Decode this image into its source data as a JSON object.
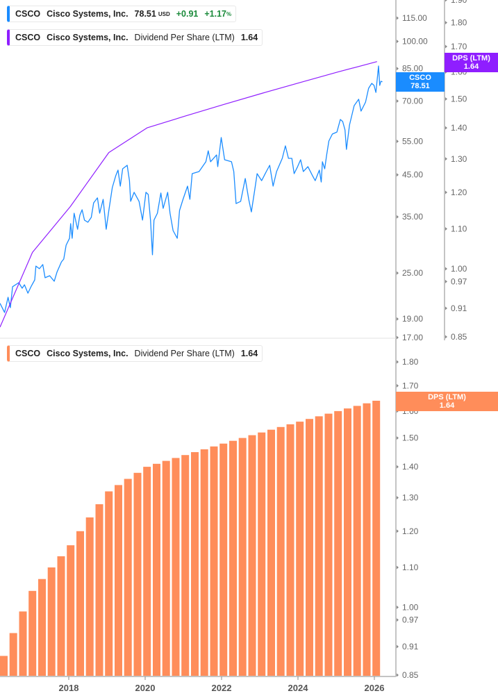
{
  "colors": {
    "price": "#1a8cff",
    "dps_line": "#8f1eff",
    "dps_bar": "#ff8d5a",
    "axis": "#b0b0b0",
    "gain": "#1a8a3a"
  },
  "legends": [
    {
      "ticker": "CSCO",
      "name": "Cisco Systems, Inc.",
      "price": "78.51",
      "currency": "USD",
      "change": "+0.91",
      "change_pct": "+1.17",
      "pct_sign": "%"
    },
    {
      "ticker": "CSCO",
      "name": "Cisco Systems, Inc.",
      "metric": "Dividend Per Share (LTM)",
      "value": "1.64"
    },
    {
      "ticker": "CSCO",
      "name": "Cisco Systems, Inc.",
      "metric": "Dividend Per Share (LTM)",
      "value": "1.64"
    }
  ],
  "tags": {
    "price": {
      "label": "CSCO",
      "value": "78.51"
    },
    "dps_top": {
      "label": "DPS (LTM)",
      "value": "1.64"
    },
    "dps_bottom": {
      "label": "DPS (LTM)",
      "value": "1.64"
    }
  },
  "chart_data": [
    {
      "type": "line",
      "scale": "log",
      "x_axis": {
        "type": "date",
        "range": [
          2016.2,
          2026.5
        ]
      },
      "price_axis": {
        "ticks": [
          "115.00",
          "100.00",
          "85.00",
          "70.00",
          "55.00",
          "45.00",
          "35.00",
          "25.00",
          "19.00",
          "17.00"
        ],
        "range": [
          17,
          115
        ]
      },
      "dps_axis": {
        "ticks": [
          "1.90",
          "1.80",
          "1.70",
          "1.60",
          "1.50",
          "1.40",
          "1.30",
          "1.20",
          "1.10",
          "1.00",
          "0.97",
          "0.91",
          "0.85"
        ],
        "range": [
          0.85,
          1.9
        ]
      },
      "series": [
        {
          "name": "CSCO",
          "axis": "price",
          "points": [
            [
              2016.2,
              20.86
            ],
            [
              2016.32,
              19.75
            ],
            [
              2016.41,
              21.63
            ],
            [
              2016.47,
              20.32
            ],
            [
              2016.53,
              23.04
            ],
            [
              2016.69,
              23.6
            ],
            [
              2016.78,
              22.83
            ],
            [
              2016.84,
              23.31
            ],
            [
              2016.93,
              22.17
            ],
            [
              2017.02,
              23.13
            ],
            [
              2017.11,
              24.0
            ],
            [
              2017.14,
              26.07
            ],
            [
              2017.23,
              25.66
            ],
            [
              2017.32,
              26.31
            ],
            [
              2017.38,
              24.31
            ],
            [
              2017.5,
              24.6
            ],
            [
              2017.62,
              23.81
            ],
            [
              2017.69,
              25.13
            ],
            [
              2017.81,
              26.74
            ],
            [
              2017.87,
              27.19
            ],
            [
              2017.93,
              29.54
            ],
            [
              2018.02,
              30.78
            ],
            [
              2018.05,
              33.61
            ],
            [
              2018.09,
              30.78
            ],
            [
              2018.14,
              35.77
            ],
            [
              2018.23,
              32.49
            ],
            [
              2018.29,
              35.33
            ],
            [
              2018.35,
              36.52
            ],
            [
              2018.41,
              34.33
            ],
            [
              2018.5,
              33.89
            ],
            [
              2018.59,
              34.88
            ],
            [
              2018.65,
              38.05
            ],
            [
              2018.75,
              39.2
            ],
            [
              2018.81,
              35.77
            ],
            [
              2018.9,
              38.86
            ],
            [
              2018.98,
              32.49
            ],
            [
              2019.05,
              36.37
            ],
            [
              2019.14,
              41.72
            ],
            [
              2019.23,
              44.78
            ],
            [
              2019.29,
              46.29
            ],
            [
              2019.35,
              42.06
            ],
            [
              2019.41,
              46.67
            ],
            [
              2019.53,
              47.64
            ],
            [
              2019.59,
              43.47
            ],
            [
              2019.62,
              38.4
            ],
            [
              2019.71,
              40.53
            ],
            [
              2019.84,
              38.4
            ],
            [
              2019.93,
              34.33
            ],
            [
              2020.02,
              40.53
            ],
            [
              2020.08,
              40.01
            ],
            [
              2020.14,
              34.33
            ],
            [
              2020.19,
              27.88
            ],
            [
              2020.23,
              34.33
            ],
            [
              2020.32,
              35.77
            ],
            [
              2020.41,
              40.37
            ],
            [
              2020.47,
              36.82
            ],
            [
              2020.59,
              40.53
            ],
            [
              2020.65,
              35.77
            ],
            [
              2020.73,
              32.24
            ],
            [
              2020.84,
              30.78
            ],
            [
              2020.9,
              36.37
            ],
            [
              2020.99,
              38.86
            ],
            [
              2021.11,
              42.06
            ],
            [
              2021.17,
              38.86
            ],
            [
              2021.23,
              45.33
            ],
            [
              2021.41,
              45.89
            ],
            [
              2021.59,
              48.67
            ],
            [
              2021.65,
              51.98
            ],
            [
              2021.71,
              48.67
            ],
            [
              2021.87,
              50.7
            ],
            [
              2021.9,
              47.27
            ],
            [
              2021.99,
              56.26
            ],
            [
              2022.08,
              49.25
            ],
            [
              2022.26,
              48.67
            ],
            [
              2022.32,
              45.89
            ],
            [
              2022.38,
              37.9
            ],
            [
              2022.5,
              38.4
            ],
            [
              2022.62,
              44.03
            ],
            [
              2022.71,
              38.86
            ],
            [
              2022.78,
              36.05
            ],
            [
              2022.87,
              41.18
            ],
            [
              2022.93,
              45.33
            ],
            [
              2023.05,
              43.47
            ],
            [
              2023.17,
              45.89
            ],
            [
              2023.26,
              47.64
            ],
            [
              2023.35,
              42.06
            ],
            [
              2023.44,
              45.89
            ],
            [
              2023.59,
              49.66
            ],
            [
              2023.67,
              53.52
            ],
            [
              2023.75,
              49.66
            ],
            [
              2023.84,
              49.66
            ],
            [
              2023.9,
              45.33
            ],
            [
              2023.99,
              47.27
            ],
            [
              2024.07,
              49.25
            ],
            [
              2024.14,
              45.89
            ],
            [
              2024.26,
              47.27
            ],
            [
              2024.38,
              44.78
            ],
            [
              2024.45,
              43.47
            ],
            [
              2024.56,
              46.29
            ],
            [
              2024.61,
              43.11
            ],
            [
              2024.64,
              48.67
            ],
            [
              2024.7,
              46.67
            ],
            [
              2024.75,
              50.7
            ],
            [
              2024.81,
              55.1
            ],
            [
              2024.9,
              57.45
            ],
            [
              2025.02,
              58.14
            ],
            [
              2025.11,
              62.68
            ],
            [
              2025.17,
              61.92
            ],
            [
              2025.23,
              58.9
            ],
            [
              2025.27,
              52.41
            ],
            [
              2025.35,
              60.64
            ],
            [
              2025.47,
              68.1
            ],
            [
              2025.59,
              70.74
            ],
            [
              2025.65,
              65.9
            ],
            [
              2025.77,
              69.54
            ],
            [
              2025.85,
              75.56
            ],
            [
              2025.93,
              77.8
            ],
            [
              2025.99,
              76.86
            ],
            [
              2026.04,
              73.69
            ],
            [
              2026.11,
              86.31
            ],
            [
              2026.14,
              76.86
            ],
            [
              2026.17,
              78.8
            ],
            [
              2026.21,
              78.51
            ]
          ]
        },
        {
          "name": "Dividend Per Share (LTM)",
          "axis": "dps",
          "points": [
            [
              2016.2,
              0.87
            ],
            [
              2017.05,
              1.04
            ],
            [
              2018.04,
              1.16
            ],
            [
              2019.05,
              1.32
            ],
            [
              2020.05,
              1.4
            ],
            [
              2021.05,
              1.44
            ],
            [
              2022.05,
              1.48
            ],
            [
              2023.05,
              1.52
            ],
            [
              2024.05,
              1.56
            ],
            [
              2025.05,
              1.6
            ],
            [
              2026.07,
              1.64
            ]
          ]
        }
      ]
    },
    {
      "type": "bar",
      "scale": "log",
      "y_axis": {
        "ticks": [
          "1.80",
          "1.70",
          "1.60",
          "1.50",
          "1.40",
          "1.30",
          "1.20",
          "1.10",
          "1.00",
          "0.97",
          "0.91",
          "0.85"
        ],
        "range": [
          0.85,
          1.8
        ]
      },
      "x_axis": {
        "type": "date",
        "ticks": [
          "2018",
          "2020",
          "2022",
          "2024",
          "2026"
        ],
        "range": [
          2016.2,
          2026.5
        ]
      },
      "series": [
        {
          "name": "Dividend Per Share (LTM)",
          "x": [
            2016.3,
            2016.55,
            2016.8,
            2017.05,
            2017.3,
            2017.55,
            2017.8,
            2018.05,
            2018.3,
            2018.55,
            2018.8,
            2019.05,
            2019.3,
            2019.55,
            2019.8,
            2020.05,
            2020.3,
            2020.55,
            2020.8,
            2021.05,
            2021.3,
            2021.55,
            2021.8,
            2022.05,
            2022.3,
            2022.55,
            2022.8,
            2023.05,
            2023.3,
            2023.55,
            2023.8,
            2024.05,
            2024.3,
            2024.55,
            2024.8,
            2025.05,
            2025.3,
            2025.55,
            2025.8,
            2026.05
          ],
          "values": [
            0.89,
            0.94,
            0.99,
            1.04,
            1.07,
            1.1,
            1.13,
            1.16,
            1.2,
            1.24,
            1.28,
            1.32,
            1.34,
            1.36,
            1.38,
            1.4,
            1.41,
            1.42,
            1.43,
            1.44,
            1.45,
            1.46,
            1.47,
            1.48,
            1.49,
            1.5,
            1.51,
            1.52,
            1.53,
            1.54,
            1.55,
            1.56,
            1.57,
            1.58,
            1.59,
            1.6,
            1.61,
            1.62,
            1.63,
            1.64
          ]
        }
      ]
    }
  ]
}
